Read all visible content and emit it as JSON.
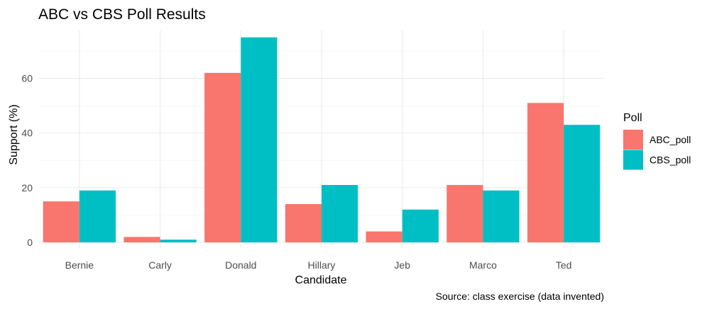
{
  "chart_data": {
    "type": "bar",
    "title": "ABC vs CBS Poll Results",
    "xlabel": "Candidate",
    "ylabel": "Support (%)",
    "caption": "Source: class exercise (data invented)",
    "categories": [
      "Bernie",
      "Carly",
      "Donald",
      "Hillary",
      "Jeb",
      "Marco",
      "Ted"
    ],
    "series": [
      {
        "name": "ABC_poll",
        "color": "#F8766D",
        "values": [
          15,
          2,
          62,
          14,
          4,
          21,
          51
        ]
      },
      {
        "name": "CBS_poll",
        "color": "#00BFC4",
        "values": [
          19,
          1,
          75,
          21,
          12,
          19,
          43
        ]
      }
    ],
    "ylim": [
      0,
      75
    ],
    "yticks": [
      0,
      20,
      40,
      60
    ],
    "legend": {
      "title": "Poll",
      "position": "right"
    },
    "grid": true,
    "theme": "minimal"
  }
}
